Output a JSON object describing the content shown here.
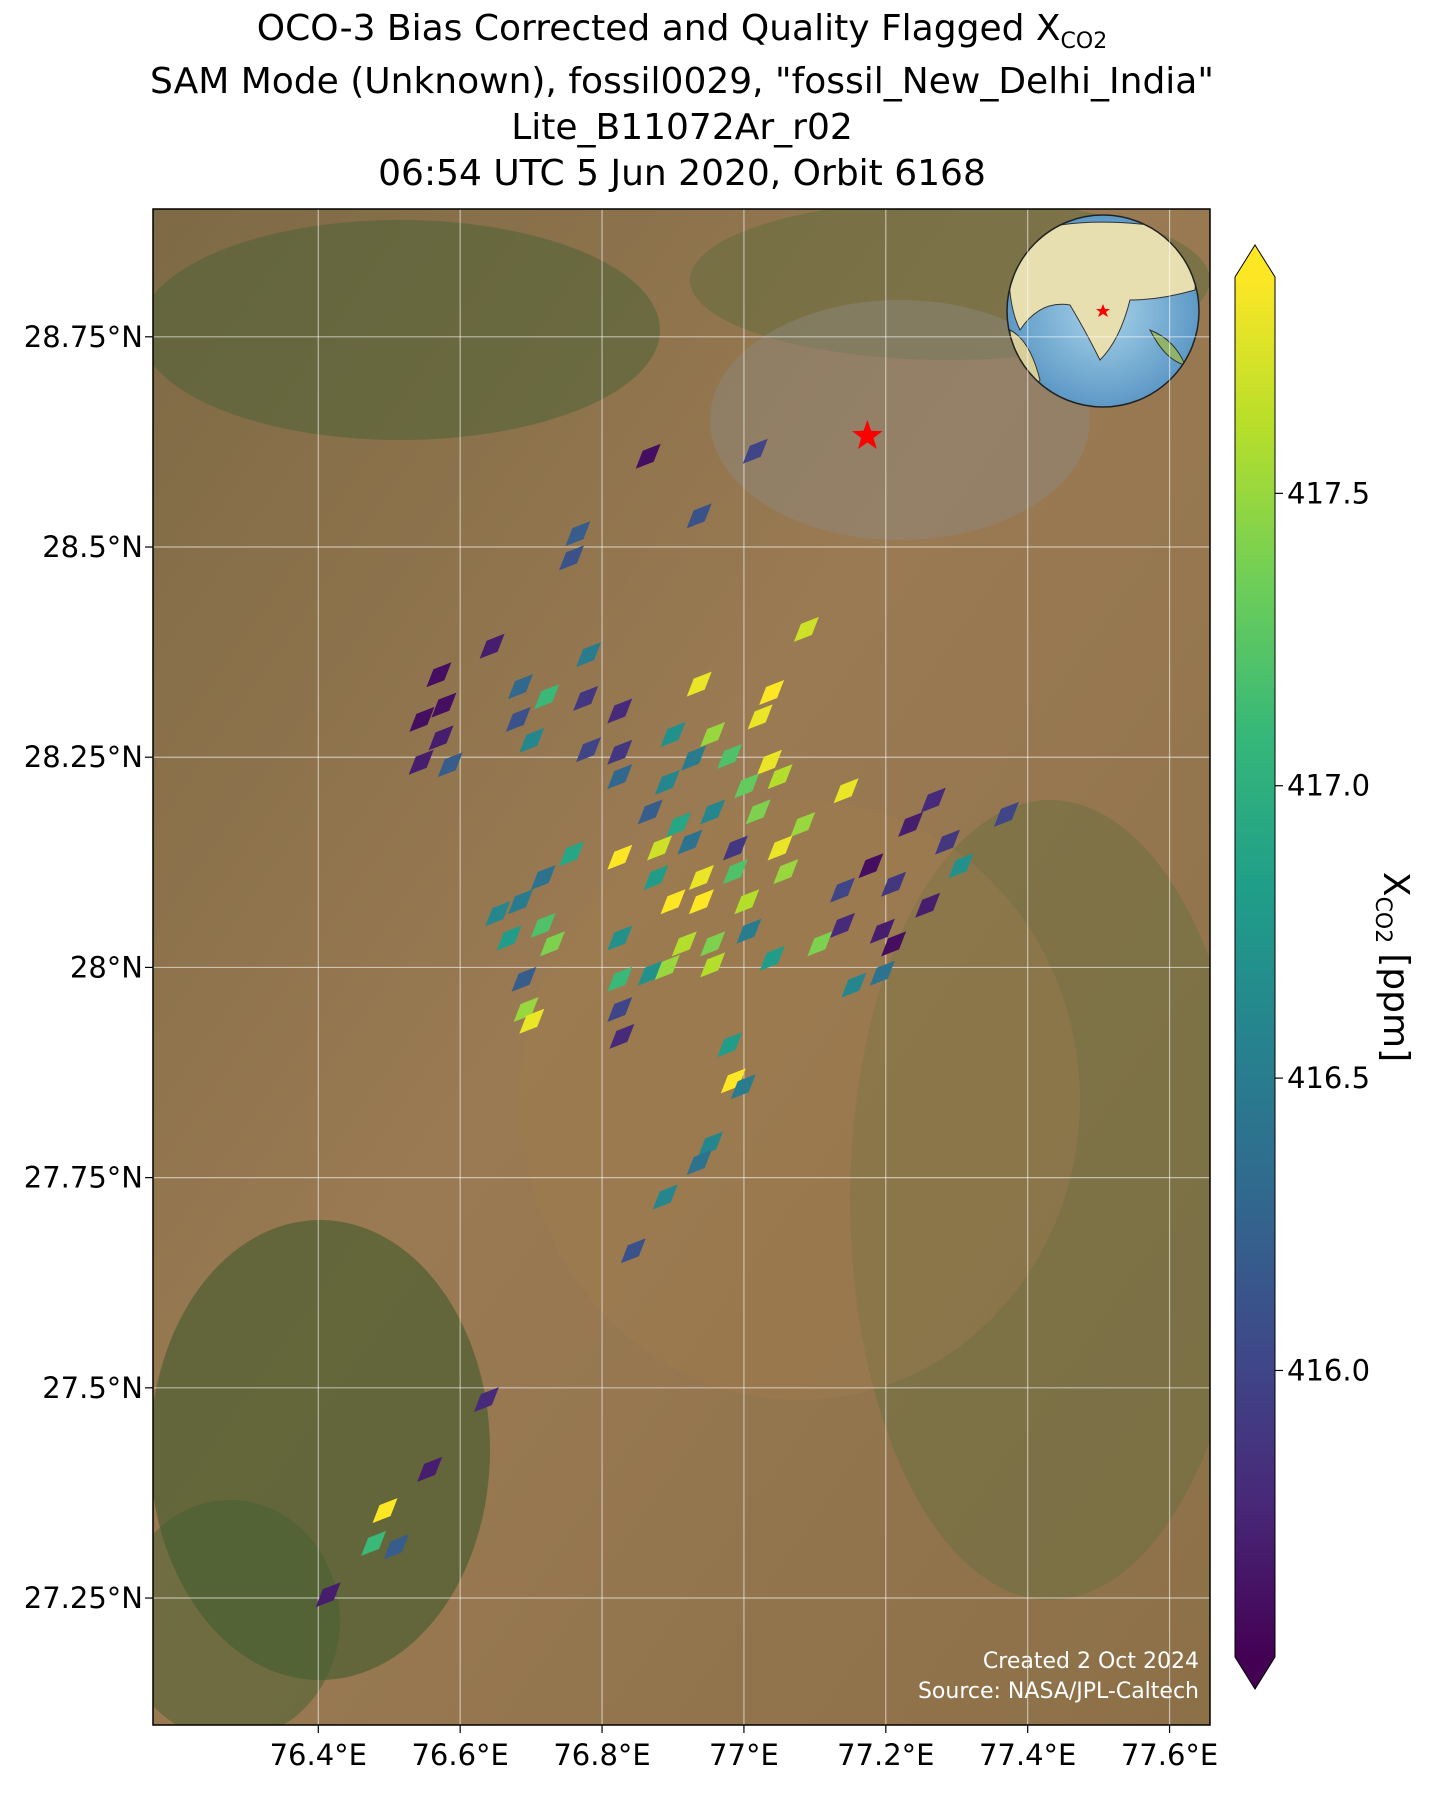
{
  "chart_data": {
    "type": "map",
    "title": "OCO-3 Bias Corrected and Quality Flagged X",
    "title_sub": "CO2",
    "subtitle": [
      "SAM Mode (Unknown), fossil0029, \"fossil_New_Delhi_India\"",
      "Lite_B11072Ar_r02",
      "06:54 UTC 5 Jun 2020, Orbit 6168"
    ],
    "xlim": [
      76.167,
      77.657
    ],
    "ylim": [
      27.099,
      28.902
    ],
    "xticks": [
      {
        "value": 76.4,
        "label": "76.4°E"
      },
      {
        "value": 76.6,
        "label": "76.6°E"
      },
      {
        "value": 76.8,
        "label": "76.8°E"
      },
      {
        "value": 77,
        "label": "77°E"
      },
      {
        "value": 77.2,
        "label": "77.2°E"
      },
      {
        "value": 77.4,
        "label": "77.4°E"
      },
      {
        "value": 77.6,
        "label": "77.6°E"
      }
    ],
    "yticks": [
      {
        "value": 27.25,
        "label": "27.25°N"
      },
      {
        "value": 27.5,
        "label": "27.5°N"
      },
      {
        "value": 27.75,
        "label": "27.75°N"
      },
      {
        "value": 28,
        "label": "28°N"
      },
      {
        "value": 28.25,
        "label": "28.25°N"
      },
      {
        "value": 28.5,
        "label": "28.5°N"
      },
      {
        "value": 28.75,
        "label": "28.75°N"
      }
    ],
    "grid": true,
    "colormap": "viridis",
    "clim": [
      415.51,
      417.87
    ],
    "cticks": [
      {
        "value": 416,
        "label": "416.0"
      },
      {
        "value": 416.5,
        "label": "416.5"
      },
      {
        "value": 417,
        "label": "417.0"
      },
      {
        "value": 417.5,
        "label": "417.5"
      }
    ],
    "colorbar_label": "X",
    "colorbar_label_sub": "CO2",
    "colorbar_unit": "[ppm]",
    "target": {
      "lon": 77.174,
      "lat": 28.632,
      "color": "#ff0000"
    },
    "credits": [
      "Created 2 Oct 2024",
      "Source: NASA/JPL-Caltech"
    ],
    "lon": [
      76.865,
      77.016,
      76.937,
      76.766,
      76.757,
      77.088,
      76.645,
      76.57,
      76.937,
      76.781,
      76.685,
      76.722,
      76.777,
      76.825,
      76.577,
      76.546,
      76.682,
      77.039,
      77.023,
      76.573,
      76.701,
      76.781,
      76.825,
      76.545,
      76.586,
      76.9,
      76.956,
      76.929,
      76.98,
      77.036,
      76.825,
      77.144,
      76.892,
      77.004,
      77.051,
      76.868,
      76.908,
      76.956,
      77.02,
      77.267,
      77.37,
      76.757,
      76.825,
      76.881,
      76.924,
      76.988,
      77.083,
      77.051,
      77.235,
      77.287,
      76.876,
      76.94,
      76.988,
      77.059,
      77.179,
      77.306,
      76.717,
      76.685,
      76.653,
      76.9,
      76.94,
      77.004,
      77.139,
      77.211,
      77.259,
      76.717,
      76.669,
      76.916,
      76.956,
      77.007,
      77.139,
      77.195,
      76.73,
      76.825,
      77.04,
      77.107,
      77.211,
      76.69,
      76.825,
      76.868,
      76.892,
      76.956,
      77.155,
      77.195,
      76.693,
      76.825,
      76.701,
      76.828,
      76.98,
      76.985,
      76.999,
      76.953,
      76.937,
      76.889,
      76.844,
      76.637,
      76.557,
      76.494,
      76.51,
      76.478,
      76.414
    ],
    "lat": [
      28.608,
      28.614,
      28.537,
      28.516,
      28.487,
      28.402,
      28.382,
      28.348,
      28.337,
      28.372,
      28.334,
      28.322,
      28.32,
      28.305,
      28.312,
      28.295,
      28.295,
      28.327,
      28.298,
      28.273,
      28.27,
      28.259,
      28.256,
      28.244,
      28.241,
      28.277,
      28.277,
      28.249,
      28.251,
      28.244,
      28.227,
      28.21,
      28.22,
      28.216,
      28.227,
      28.185,
      28.17,
      28.185,
      28.185,
      28.199,
      28.182,
      28.135,
      28.131,
      28.142,
      28.149,
      28.142,
      28.17,
      28.142,
      28.17,
      28.149,
      28.107,
      28.107,
      28.114,
      28.114,
      28.121,
      28.121,
      28.107,
      28.078,
      28.064,
      28.078,
      28.078,
      28.078,
      28.092,
      28.099,
      28.074,
      28.05,
      28.035,
      28.028,
      28.028,
      28.043,
      28.05,
      28.043,
      28.028,
      28.035,
      28.011,
      28.028,
      28.028,
      27.986,
      27.986,
      27.993,
      28.0,
      28.003,
      27.979,
      27.993,
      27.95,
      27.95,
      27.936,
      27.918,
      27.908,
      27.865,
      27.858,
      27.79,
      27.768,
      27.727,
      27.663,
      27.486,
      27.403,
      27.354,
      27.311,
      27.315,
      27.254
    ],
    "values": [
      415.6,
      416.0,
      416.1,
      416.2,
      416.1,
      417.7,
      415.7,
      415.6,
      417.8,
      416.5,
      416.3,
      417.1,
      415.9,
      415.8,
      415.6,
      415.6,
      416.1,
      417.9,
      417.8,
      415.7,
      416.6,
      416.0,
      415.9,
      415.7,
      416.2,
      416.7,
      417.5,
      416.5,
      417.2,
      417.8,
      416.3,
      417.8,
      416.6,
      417.3,
      417.6,
      416.2,
      416.9,
      416.6,
      417.4,
      415.8,
      416.0,
      416.9,
      417.9,
      417.7,
      416.4,
      415.9,
      417.5,
      417.8,
      415.7,
      415.9,
      416.8,
      417.8,
      417.2,
      417.5,
      415.6,
      416.7,
      416.4,
      416.5,
      416.6,
      417.9,
      417.9,
      417.6,
      416.0,
      415.9,
      415.7,
      417.2,
      416.8,
      417.6,
      417.4,
      416.5,
      415.8,
      415.7,
      417.4,
      416.7,
      416.8,
      417.4,
      415.6,
      416.2,
      417.1,
      416.7,
      417.5,
      417.6,
      416.6,
      416.4,
      417.5,
      416.0,
      417.8,
      415.8,
      416.8,
      417.9,
      416.5,
      416.6,
      416.4,
      416.6,
      416.1,
      415.8,
      415.7,
      417.9,
      416.2,
      417.1,
      415.7
    ]
  }
}
